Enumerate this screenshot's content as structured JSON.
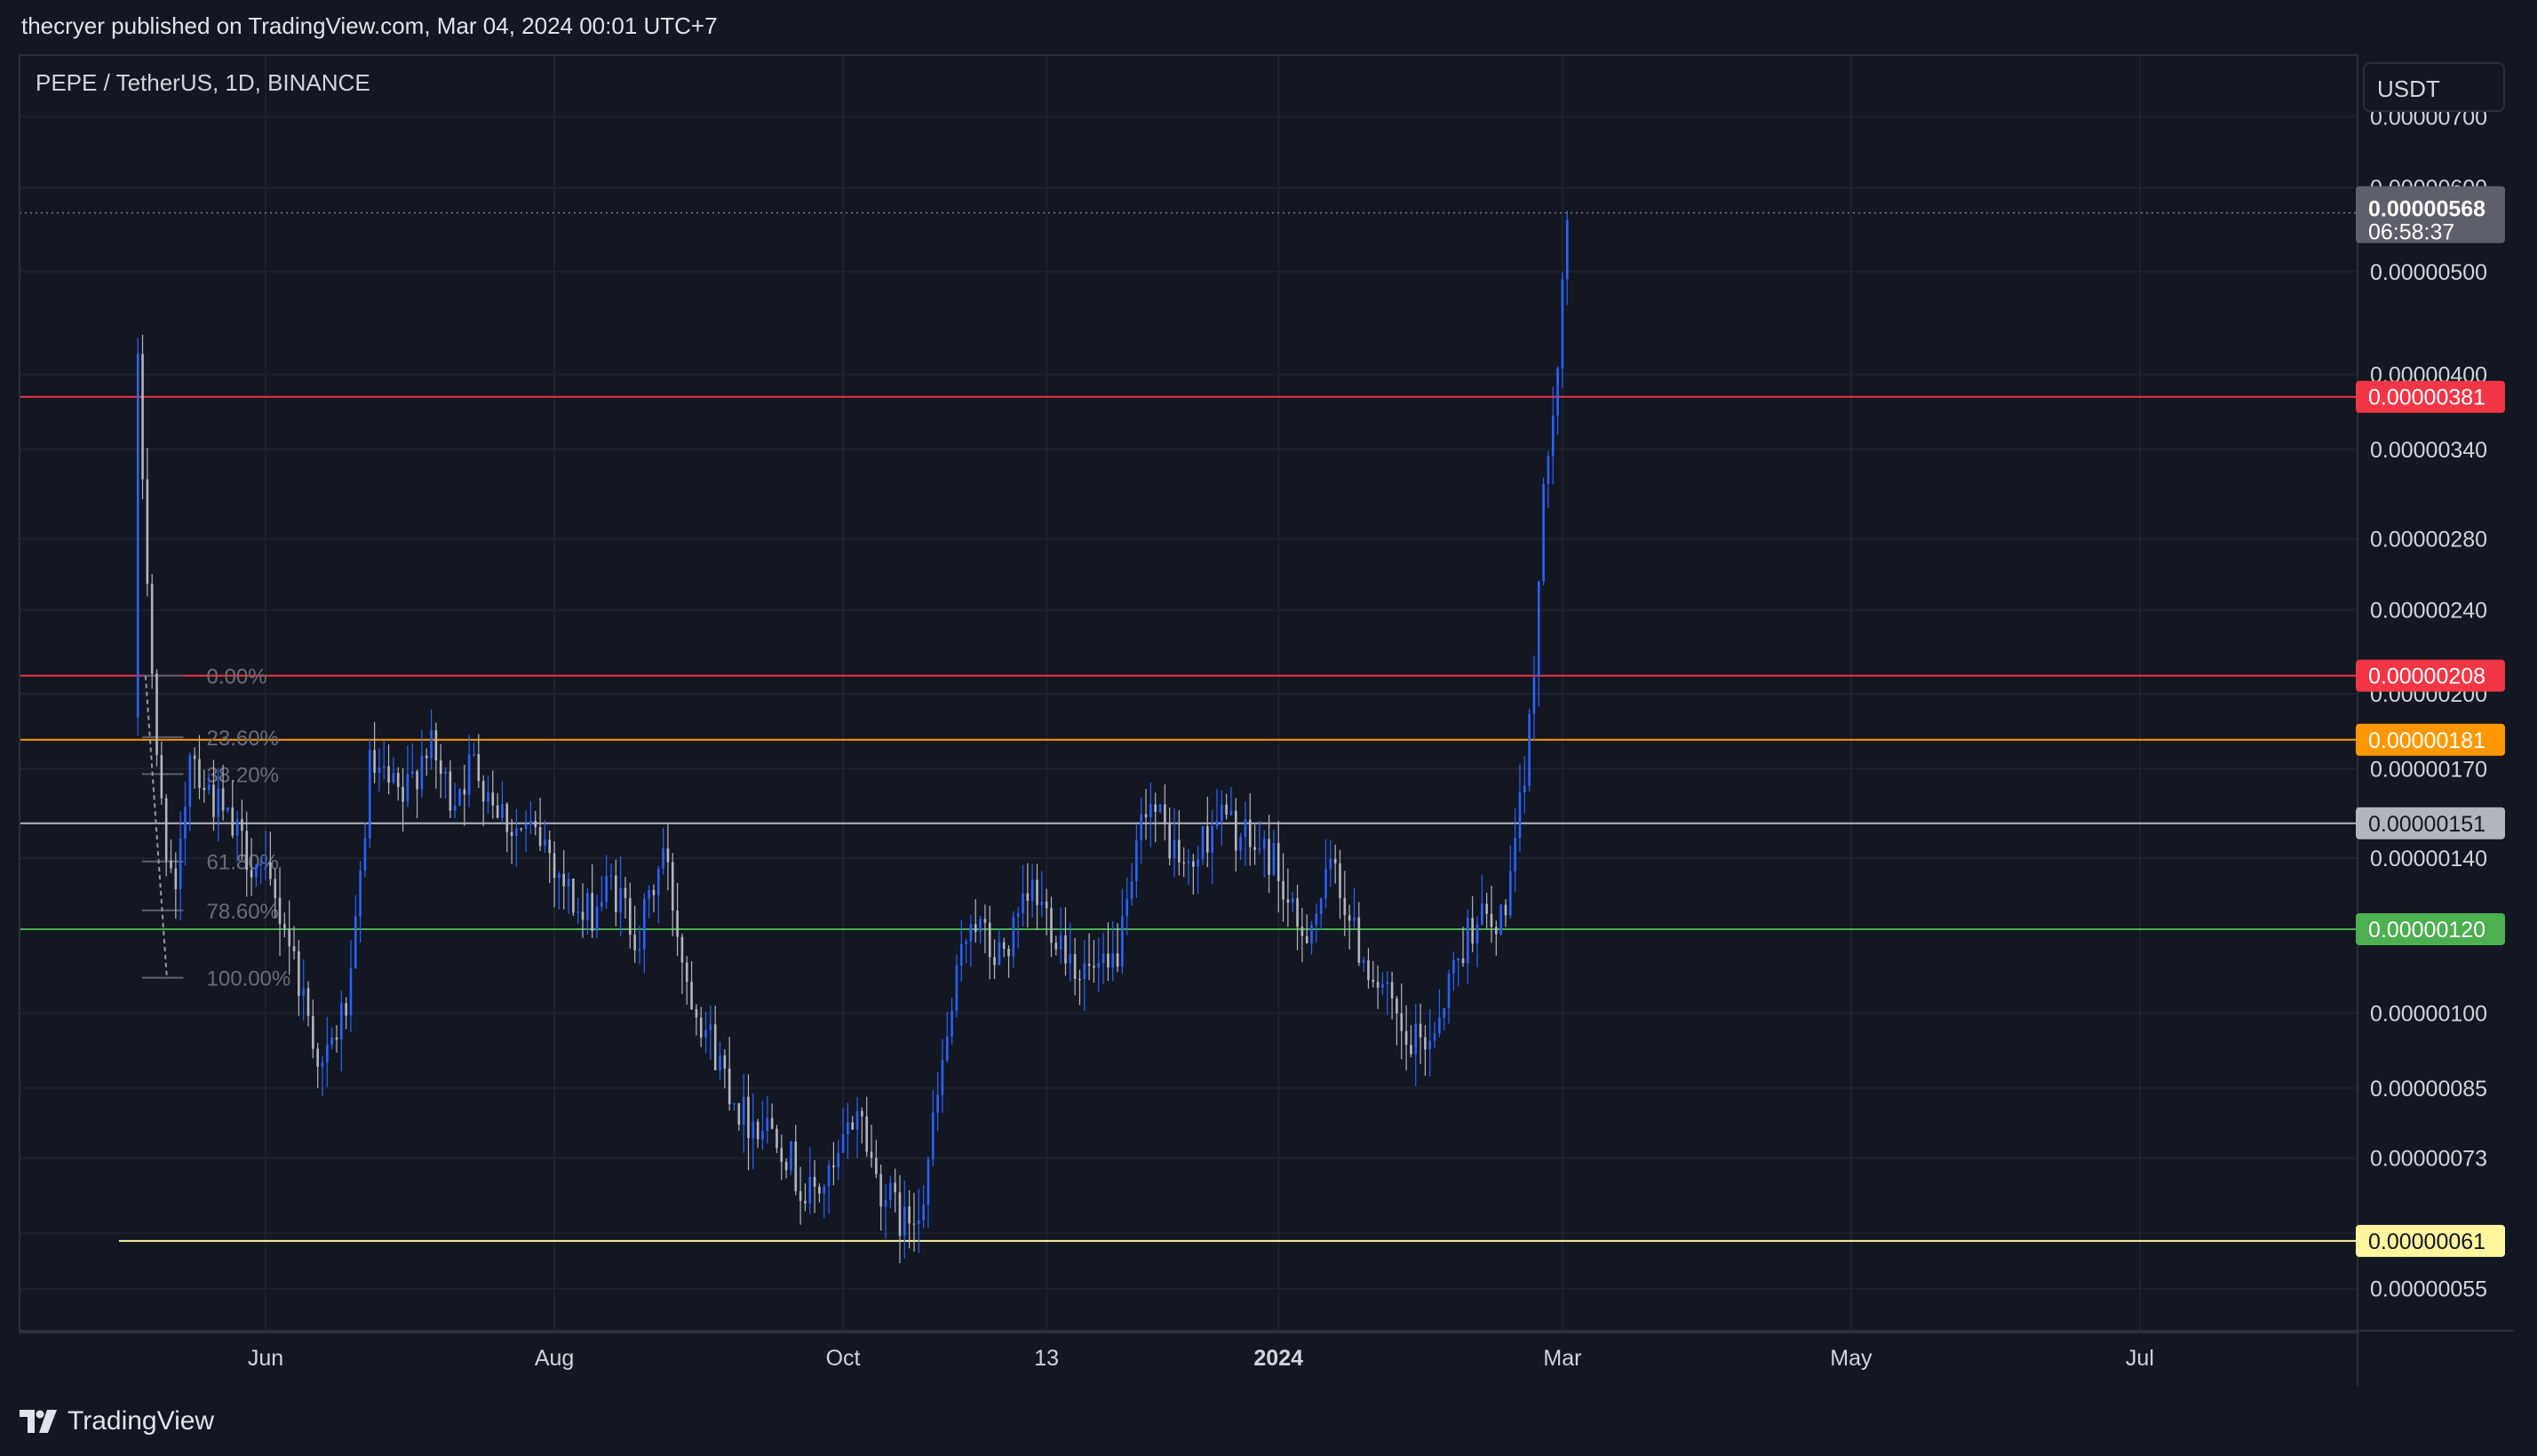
{
  "header": {
    "publisher_text": "thecryer published on TradingView.com, Mar 04, 2024 00:01 UTC+7"
  },
  "symbol_title": "PEPE / TetherUS, 1D, BINANCE",
  "currency_label": "USDT",
  "footer": {
    "logo_text": "TradingView"
  },
  "colors": {
    "background": "#131722",
    "candle_up": "#2962ff",
    "candle_down": "#b2b5be",
    "red_level": "#f23645",
    "orange_level": "#ff9800",
    "white_level": "#b2b5be",
    "green_level": "#4caf50",
    "yellow_level": "#fff59d"
  },
  "chart_data": {
    "type": "candlestick",
    "y_scale": "log",
    "ylim": [
      5e-07,
      8e-06
    ],
    "xlim": [
      "2023-04-10",
      "2024-08-16"
    ],
    "x_tick_labels": [
      {
        "label": "Jun",
        "date": "2023-06-01"
      },
      {
        "label": "Aug",
        "date": "2023-08-01"
      },
      {
        "label": "Oct",
        "date": "2023-10-01"
      },
      {
        "label": "13",
        "date": "2023-11-13"
      },
      {
        "label": "2024",
        "date": "2024-01-01",
        "bold": true
      },
      {
        "label": "Mar",
        "date": "2024-03-01"
      },
      {
        "label": "May",
        "date": "2024-05-01"
      },
      {
        "label": "Jul",
        "date": "2024-07-01"
      }
    ],
    "y_tick_labels": [
      {
        "label": "0.00000700",
        "value": 7e-06
      },
      {
        "label": "0.00000600",
        "value": 6e-06
      },
      {
        "label": "0.00000500",
        "value": 5e-06
      },
      {
        "label": "0.00000400",
        "value": 4e-06
      },
      {
        "label": "0.00000340",
        "value": 3.4e-06
      },
      {
        "label": "0.00000280",
        "value": 2.8e-06
      },
      {
        "label": "0.00000240",
        "value": 2.4e-06
      },
      {
        "label": "0.00000200",
        "value": 2e-06
      },
      {
        "label": "0.00000170",
        "value": 1.7e-06
      },
      {
        "label": "0.00000140",
        "value": 1.4e-06
      },
      {
        "label": "0.00000100",
        "value": 1e-06
      },
      {
        "label": "0.00000085",
        "value": 8.5e-07
      },
      {
        "label": "0.00000073",
        "value": 7.3e-07
      },
      {
        "label": "0.00000062",
        "value": 6.2e-07
      },
      {
        "label": "0.00000055",
        "value": 5.5e-07
      }
    ],
    "current_price": {
      "label": "0.00000568",
      "value": 5.68e-06,
      "countdown": "06:58:37"
    },
    "levels": [
      {
        "label": "0.00000381",
        "value": 3.81e-06,
        "color": "#f23645",
        "start": "2023-04-10"
      },
      {
        "label": "0.00000208",
        "value": 2.08e-06,
        "color": "#f23645",
        "start": "2023-04-10"
      },
      {
        "label": "0.00000181",
        "value": 1.81e-06,
        "color": "#ff9800",
        "start": "2023-04-10"
      },
      {
        "label": "0.00000151",
        "value": 1.51e-06,
        "color": "#b2b5be",
        "start": "2023-04-10"
      },
      {
        "label": "0.00000120",
        "value": 1.2e-06,
        "color": "#4caf50",
        "start": "2023-04-10"
      },
      {
        "label": "0.00000061",
        "value": 6.1e-07,
        "color": "#fff59d",
        "start": "2023-05-01"
      }
    ],
    "fib_levels": [
      {
        "label": "0.00%",
        "value": 2.08e-06
      },
      {
        "label": "23.60%",
        "value": 1.82e-06
      },
      {
        "label": "38.20%",
        "value": 1.68e-06
      },
      {
        "label": "61.80%",
        "value": 1.39e-06
      },
      {
        "label": "78.60%",
        "value": 1.25e-06
      },
      {
        "label": "100.00%",
        "value": 1.08e-06
      }
    ],
    "fib_start": "2023-05-07",
    "fib_end": "2023-05-09",
    "anchors": [
      [
        "2023-05-05",
        1.9e-06
      ],
      [
        "2023-05-06",
        4e-06
      ],
      [
        "2023-05-08",
        2.6e-06
      ],
      [
        "2023-05-10",
        1.7e-06
      ],
      [
        "2023-05-14",
        1.25e-06
      ],
      [
        "2023-05-17",
        1.8e-06
      ],
      [
        "2023-05-20",
        1.65e-06
      ],
      [
        "2023-05-26",
        1.48e-06
      ],
      [
        "2023-05-31",
        1.38e-06
      ],
      [
        "2023-06-06",
        1.22e-06
      ],
      [
        "2023-06-14",
        8.8e-07
      ],
      [
        "2023-06-20",
        1.05e-06
      ],
      [
        "2023-06-24",
        1.7e-06
      ],
      [
        "2023-07-01",
        1.58e-06
      ],
      [
        "2023-07-06",
        1.8e-06
      ],
      [
        "2023-07-11",
        1.6e-06
      ],
      [
        "2023-07-16",
        1.72e-06
      ],
      [
        "2023-07-24",
        1.5e-06
      ],
      [
        "2023-07-31",
        1.45e-06
      ],
      [
        "2023-08-08",
        1.22e-06
      ],
      [
        "2023-08-14",
        1.32e-06
      ],
      [
        "2023-08-20",
        1.18e-06
      ],
      [
        "2023-08-25",
        1.42e-06
      ],
      [
        "2023-08-30",
        1.08e-06
      ],
      [
        "2023-09-05",
        9.2e-07
      ],
      [
        "2023-09-11",
        8e-07
      ],
      [
        "2023-09-18",
        7.8e-07
      ],
      [
        "2023-09-24",
        6.7e-07
      ],
      [
        "2023-09-30",
        7e-07
      ],
      [
        "2023-10-05",
        8.2e-07
      ],
      [
        "2023-10-09",
        7e-07
      ],
      [
        "2023-10-15",
        6.3e-07
      ],
      [
        "2023-10-19",
        6.8e-07
      ],
      [
        "2023-10-24",
        9.5e-07
      ],
      [
        "2023-10-29",
        1.25e-06
      ],
      [
        "2023-11-03",
        1.12e-06
      ],
      [
        "2023-11-07",
        1.18e-06
      ],
      [
        "2023-11-11",
        1.3e-06
      ],
      [
        "2023-11-16",
        1.2e-06
      ],
      [
        "2023-11-21",
        1.1e-06
      ],
      [
        "2023-11-27",
        1.08e-06
      ],
      [
        "2023-12-01",
        1.22e-06
      ],
      [
        "2023-12-05",
        1.6e-06
      ],
      [
        "2023-12-09",
        1.48e-06
      ],
      [
        "2023-12-14",
        1.35e-06
      ],
      [
        "2023-12-20",
        1.55e-06
      ],
      [
        "2023-12-26",
        1.45e-06
      ],
      [
        "2024-01-01",
        1.4e-06
      ],
      [
        "2024-01-06",
        1.18e-06
      ],
      [
        "2024-01-10",
        1.25e-06
      ],
      [
        "2024-01-14",
        1.38e-06
      ],
      [
        "2024-01-18",
        1.18e-06
      ],
      [
        "2024-01-24",
        1.05e-06
      ],
      [
        "2024-01-29",
        9.2e-07
      ],
      [
        "2024-02-03",
        9.5e-07
      ],
      [
        "2024-02-08",
        1.1e-06
      ],
      [
        "2024-02-13",
        1.25e-06
      ],
      [
        "2024-02-17",
        1.18e-06
      ],
      [
        "2024-02-21",
        1.4e-06
      ],
      [
        "2024-02-24",
        1.85e-06
      ],
      [
        "2024-02-27",
        3e-06
      ],
      [
        "2024-02-28",
        3.5e-06
      ],
      [
        "2024-03-01",
        4.2e-06
      ],
      [
        "2024-03-02",
        4.9e-06
      ],
      [
        "2024-03-03",
        5.68e-06
      ]
    ]
  }
}
